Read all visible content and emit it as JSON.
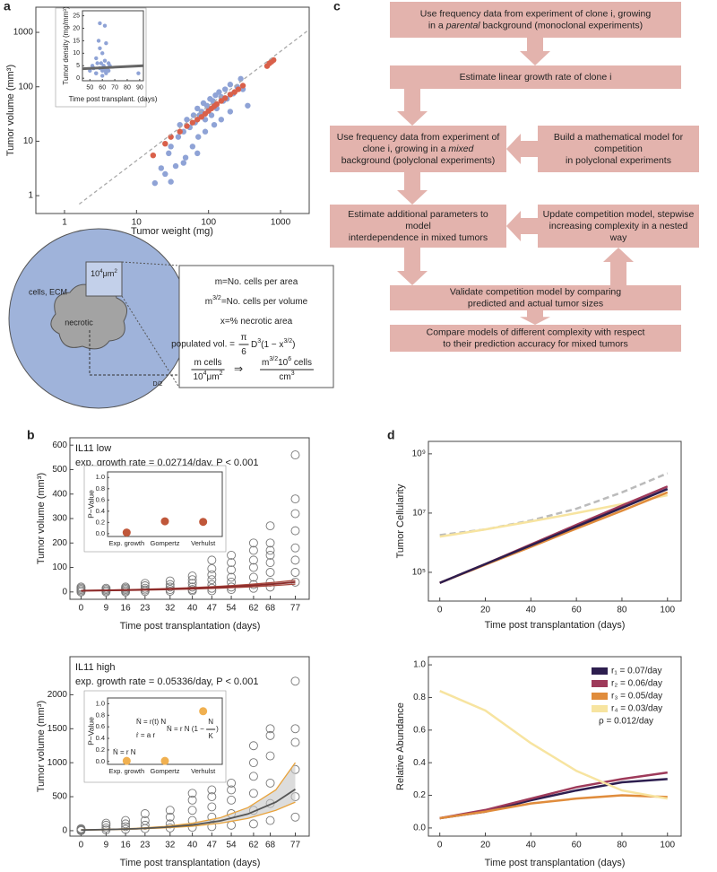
{
  "panel_labels": [
    "a",
    "b",
    "c",
    "d"
  ],
  "chart_data": [
    {
      "type": "scatter",
      "xlog": true,
      "ylog": true,
      "xlabel": "Tumor weight (mg)",
      "ylabel": "Tumor volume (mm³)",
      "xlim": [
        0.4,
        2500
      ],
      "ylim": [
        0.47,
        2900
      ],
      "xticks": [
        1,
        10,
        100,
        1000
      ],
      "yticks": [
        1,
        10,
        100,
        1000
      ],
      "series": [
        {
          "color": "#8fa3d6",
          "marker": "filled",
          "x": [
            18,
            22,
            25,
            28,
            30,
            35,
            38,
            40,
            45,
            48,
            50,
            55,
            60,
            62,
            65,
            70,
            72,
            75,
            80,
            85,
            90,
            95,
            100,
            105,
            110,
            115,
            120,
            125,
            130,
            140,
            150,
            160,
            170,
            180,
            200,
            220,
            250,
            280,
            300,
            350,
            30,
            45,
            70,
            90,
            120,
            150,
            200
          ],
          "values": [
            1.7,
            3.2,
            2.5,
            6,
            8,
            3.5,
            12,
            20,
            15,
            5,
            25,
            18,
            8,
            30,
            22,
            40,
            12,
            30,
            35,
            50,
            25,
            45,
            38,
            60,
            30,
            55,
            45,
            70,
            40,
            80,
            65,
            55,
            90,
            60,
            110,
            75,
            100,
            140,
            90,
            45,
            1.8,
            4,
            6,
            15,
            20,
            25,
            35
          ]
        },
        {
          "color": "#d9604a",
          "marker": "filled",
          "x": [
            17,
            25,
            30,
            40,
            50,
            60,
            70,
            80,
            90,
            100,
            110,
            120,
            130,
            150,
            170,
            200,
            230,
            260,
            300,
            650,
            700,
            750,
            800
          ],
          "values": [
            5.5,
            9,
            12,
            15,
            19,
            22,
            25,
            28,
            32,
            36,
            40,
            44,
            48,
            55,
            62,
            72,
            80,
            90,
            105,
            240,
            270,
            290,
            310
          ]
        },
        {
          "mode": "line",
          "dashed": true,
          "color": "#aaaaaa",
          "x": [
            1.6,
            2500
          ],
          "values": [
            0.7,
            1125
          ]
        }
      ]
    },
    {
      "type": "scatter",
      "xlabel": "Time post transplant. (days)",
      "ylabel": "Tumor density (mg/mm³)",
      "xlim": [
        44,
        93
      ],
      "ylim": [
        -1,
        27
      ],
      "xticks": [
        50,
        60,
        70,
        80,
        90
      ],
      "yticks": [
        0,
        5,
        10,
        15,
        20,
        25
      ],
      "series": [
        {
          "color": "#8fa3d6",
          "marker": "filled",
          "x": [
            50,
            52,
            53,
            55,
            55,
            56,
            57,
            58,
            58,
            59,
            60,
            60,
            61,
            62,
            62,
            63,
            64,
            65,
            65,
            66,
            55,
            58,
            60,
            62,
            63,
            89
          ],
          "values": [
            3,
            5,
            4,
            8,
            2,
            6,
            15,
            22,
            4,
            6,
            3,
            10,
            5,
            7,
            21,
            2,
            4,
            6,
            3,
            5,
            2,
            12,
            1,
            3,
            14,
            2
          ]
        },
        {
          "mode": "line",
          "color": "#666666",
          "x": [
            44,
            93
          ],
          "values": [
            3.8,
            5.0
          ]
        }
      ]
    },
    {
      "type": "scatter",
      "xlabel": "Time post transplantation (days)",
      "ylabel": "Tumor volume  (mm³)",
      "annotations": [
        "IL11 low",
        "exp. growth rate = 0.02714/day, P < 0.001"
      ],
      "xlim": [
        -4,
        82
      ],
      "ylim": [
        -30,
        630
      ],
      "xticks": [
        0,
        9,
        16,
        23,
        32,
        40,
        47,
        54,
        62,
        68,
        77
      ],
      "yticks": [
        0,
        100,
        200,
        300,
        400,
        500,
        600
      ],
      "series": [
        {
          "color": "#777777",
          "marker": "open",
          "x": [
            0,
            0,
            0,
            0,
            0,
            9,
            9,
            9,
            9,
            16,
            16,
            16,
            16,
            16,
            23,
            23,
            23,
            23,
            23,
            32,
            32,
            32,
            32,
            32,
            40,
            40,
            40,
            40,
            40,
            40,
            47,
            47,
            47,
            47,
            47,
            47,
            47,
            54,
            54,
            54,
            54,
            54,
            54,
            54,
            62,
            62,
            62,
            62,
            62,
            62,
            62,
            68,
            68,
            68,
            68,
            68,
            68,
            68,
            68,
            77,
            77,
            77,
            77,
            77,
            77,
            77,
            77
          ],
          "values": [
            0,
            5,
            10,
            15,
            20,
            0,
            5,
            10,
            15,
            0,
            5,
            10,
            15,
            20,
            2,
            8,
            15,
            25,
            35,
            3,
            10,
            20,
            30,
            45,
            5,
            10,
            20,
            35,
            50,
            65,
            5,
            15,
            30,
            50,
            70,
            95,
            130,
            10,
            20,
            40,
            60,
            90,
            120,
            150,
            15,
            30,
            60,
            100,
            130,
            170,
            200,
            20,
            40,
            80,
            120,
            150,
            170,
            200,
            270,
            40,
            80,
            130,
            180,
            250,
            320,
            380,
            560
          ]
        },
        {
          "mode": "band",
          "color": "#c4c4c4",
          "edge_color": "#a8453a",
          "x": [
            0,
            10,
            20,
            30,
            40,
            50,
            60,
            70,
            77
          ],
          "lower": [
            4,
            5.2,
            6.9,
            9,
            11.8,
            15.4,
            20.2,
            26.5,
            32
          ],
          "upper": [
            6,
            7.8,
            10.3,
            13.4,
            17.6,
            23.2,
            30.2,
            39.7,
            48
          ]
        },
        {
          "mode": "line",
          "color": "#8b2a2a",
          "x": [
            0,
            10,
            20,
            30,
            40,
            50,
            60,
            70,
            77
          ],
          "values": [
            5,
            6.5,
            8.6,
            11.2,
            14.7,
            19.3,
            25.2,
            33.1,
            40
          ]
        }
      ]
    },
    {
      "type": "dot",
      "ylabel": "P−Value",
      "color": "#c0573a",
      "categories": [
        "Exp. growth",
        "Gompertz",
        "Verhulst"
      ],
      "values": [
        0.02,
        0.22,
        0.21
      ],
      "ylim": [
        -0.05,
        1.1
      ],
      "yticks": [
        {
          "value": 0,
          "label": "0.0"
        },
        0.2,
        0.4,
        0.6,
        0.8,
        {
          "value": 1,
          "label": "1.0"
        }
      ]
    },
    {
      "type": "scatter",
      "xlabel": "Time post transplantation (days)",
      "ylabel": "Tumor volume  (mm³)",
      "annotations": [
        "IL11 high",
        "exp. growth rate = 0.05336/day, P < 0.001"
      ],
      "xlim": [
        -4,
        82
      ],
      "ylim": [
        -80,
        2560
      ],
      "xticks": [
        0,
        9,
        16,
        23,
        32,
        40,
        47,
        54,
        62,
        68,
        77
      ],
      "yticks": [
        0,
        500,
        1000,
        1500,
        2000
      ],
      "series": [
        {
          "color": "#777777",
          "marker": "open",
          "x": [
            0,
            0,
            0,
            0,
            9,
            9,
            9,
            9,
            16,
            16,
            16,
            16,
            23,
            23,
            23,
            23,
            32,
            32,
            32,
            32,
            40,
            40,
            40,
            40,
            40,
            47,
            47,
            47,
            47,
            47,
            54,
            54,
            54,
            54,
            54,
            62,
            62,
            62,
            62,
            62,
            62,
            68,
            68,
            68,
            68,
            68,
            68,
            77,
            77,
            77,
            77,
            77,
            77
          ],
          "values": [
            0,
            10,
            20,
            30,
            10,
            40,
            80,
            110,
            20,
            60,
            100,
            150,
            30,
            80,
            150,
            250,
            40,
            100,
            200,
            300,
            50,
            150,
            300,
            450,
            550,
            60,
            200,
            350,
            500,
            600,
            80,
            250,
            450,
            600,
            700,
            100,
            300,
            550,
            800,
            1000,
            1250,
            150,
            400,
            700,
            1100,
            1400,
            1500,
            200,
            500,
            900,
            1300,
            1500,
            2200
          ]
        },
        {
          "mode": "band",
          "color": "#c4c4c4",
          "edge_color": "#e8a33c",
          "x": [
            0,
            10,
            20,
            30,
            40,
            50,
            60,
            70,
            77
          ],
          "lower": [
            8,
            14,
            24,
            40,
            65,
            110,
            180,
            300,
            420
          ],
          "upper": [
            12,
            20,
            35,
            62,
            110,
            190,
            340,
            600,
            1000
          ]
        },
        {
          "mode": "line",
          "color": "#555555",
          "x": [
            0,
            10,
            20,
            30,
            40,
            50,
            60,
            70,
            77
          ],
          "values": [
            10,
            17,
            29,
            50,
            84,
            144,
            246,
            420,
            610
          ]
        }
      ]
    },
    {
      "type": "dot",
      "ylabel": "P−Value",
      "color": "#f0b050",
      "categories": [
        "Exp. growth",
        "Gompertz",
        "Verhulst"
      ],
      "values": [
        0.01,
        0.01,
        0.87
      ],
      "ylim": [
        -0.05,
        1.1
      ],
      "yticks": [
        {
          "value": 0,
          "label": "0.0"
        },
        0.2,
        0.4,
        0.6,
        0.8,
        {
          "value": 1,
          "label": "1.0"
        }
      ],
      "equations": [
        "Ṅ = r N",
        "Ṅ = r(t) N",
        "ṙ = a r",
        {
          "text": "Ṅ = r N (1 −",
          "fraction": [
            [
              "N"
            ],
            [
              "K"
            ]
          ],
          "close": ")"
        }
      ]
    },
    {
      "type": "line",
      "ylog": true,
      "xlabel": "Time post transplantation (days)",
      "ylabel": "Tumor Cellularity",
      "x": [
        0,
        20,
        40,
        60,
        80,
        100
      ],
      "xlim": [
        -5,
        106
      ],
      "ylim": [
        10700,
        2630000000
      ],
      "xticks": [
        0,
        20,
        40,
        60,
        80,
        100
      ],
      "yticks": [
        {
          "value": 100000,
          "label": "10⁵"
        },
        {
          "value": 10000000,
          "label": "10⁷"
        },
        {
          "value": 1000000000,
          "label": "10⁹"
        }
      ],
      "series": [
        {
          "color": "#bbbbbb",
          "dashed": true,
          "values": [
            1800000,
            2800000,
            5600000,
            14000000,
            50000000,
            220000000
          ]
        },
        {
          "color": "#f7e4a0",
          "values": [
            1600000,
            2800000,
            5200000,
            10000000,
            20000000,
            40000000
          ]
        },
        {
          "color": "#e08c3c",
          "values": [
            44000,
            180000,
            720000,
            3000000,
            12000000,
            50000000
          ]
        },
        {
          "color": "#9e3a5a",
          "values": [
            44000,
            190000,
            870000,
            4000000,
            18000000,
            79000000
          ]
        },
        {
          "color": "#2d1e4f",
          "values": [
            44000,
            190000,
            810000,
            3500000,
            15000000,
            65000000
          ]
        }
      ]
    },
    {
      "type": "line",
      "xlabel": "Time post transplantation (days)",
      "ylabel": "Relative Abundance",
      "legend": "upper right",
      "note": "ρ = 0.012/day",
      "x": [
        0,
        20,
        40,
        60,
        80,
        100
      ],
      "xlim": [
        -5,
        106
      ],
      "ylim": [
        -0.05,
        1.05
      ],
      "xticks": [
        0,
        20,
        40,
        60,
        80,
        100
      ],
      "yticks": [
        {
          "value": 0,
          "label": "0.0"
        },
        0.2,
        0.4,
        0.6,
        0.8,
        {
          "value": 1,
          "label": "1.0"
        }
      ],
      "series": [
        {
          "name": "r₁ = 0.07/day",
          "color": "#2d1e4f",
          "values": [
            0.06,
            0.1,
            0.17,
            0.23,
            0.28,
            0.3
          ]
        },
        {
          "name": "r₂ = 0.06/day",
          "color": "#9e3a5a",
          "values": [
            0.06,
            0.11,
            0.18,
            0.25,
            0.3,
            0.34
          ]
        },
        {
          "name": "r₃ = 0.05/day",
          "color": "#e08c3c",
          "values": [
            0.06,
            0.1,
            0.15,
            0.18,
            0.2,
            0.19
          ]
        },
        {
          "name": "r₄ = 0.03/day",
          "color": "#f7e4a0",
          "values": [
            0.84,
            0.72,
            0.52,
            0.35,
            0.23,
            0.18
          ]
        }
      ]
    }
  ],
  "schematic": {
    "outer_label": "cells, ECM",
    "area_label": [
      "10",
      "4",
      "μm",
      "2"
    ],
    "core_label": "necrotic",
    "radius_label": "D/2",
    "definitions": [
      [
        "m=No. cells per area"
      ],
      [
        "m",
        "3/2",
        "=No. cells per volume"
      ],
      [
        "x=% necrotic area"
      ]
    ],
    "volume": {
      "label": "populated vol. =",
      "fraction": [
        [
          "π"
        ],
        [
          "6"
        ]
      ],
      "rest": [
        "D",
        "3",
        "(1 − x",
        "3/2",
        ")"
      ]
    },
    "conversion": {
      "left": [
        [
          "m cells"
        ],
        [
          "10",
          "4",
          "μm",
          "2"
        ]
      ],
      "arrow": "⇒",
      "right": [
        [
          "m",
          "3/2",
          "10",
          "6",
          " cells"
        ],
        [
          "cm",
          "3"
        ]
      ]
    }
  },
  "flowchart": {
    "nodes": [
      [
        [
          "Use frequency data from experiment of clone i, growing"
        ],
        [
          "in a ",
          "parental",
          " background (monoclonal experiments)"
        ]
      ],
      [
        [
          "Estimate linear growth rate of clone i"
        ]
      ],
      [
        [
          "Use frequency data from experiment of"
        ],
        [
          "clone i, growing in a ",
          "mixed"
        ],
        [
          "background (polyclonal experiments)"
        ]
      ],
      [
        [
          "Build a mathematical model for"
        ],
        [
          "competition"
        ],
        [
          "in polyclonal experiments"
        ]
      ],
      [
        [
          "Estimate additional parameters to"
        ],
        [
          "model"
        ],
        [
          "interdependence in mixed tumors"
        ]
      ],
      [
        [
          "Update competition model, stepwise"
        ],
        [
          "increasing complexity in a nested"
        ],
        [
          "way"
        ]
      ],
      [
        [
          "Validate competition model by comparing"
        ],
        [
          "predicted and actual tumor sizes"
        ]
      ],
      [
        [
          "Compare models of different complexity with respect"
        ],
        [
          "to their prediction accuracy for mixed tumors"
        ]
      ]
    ]
  }
}
